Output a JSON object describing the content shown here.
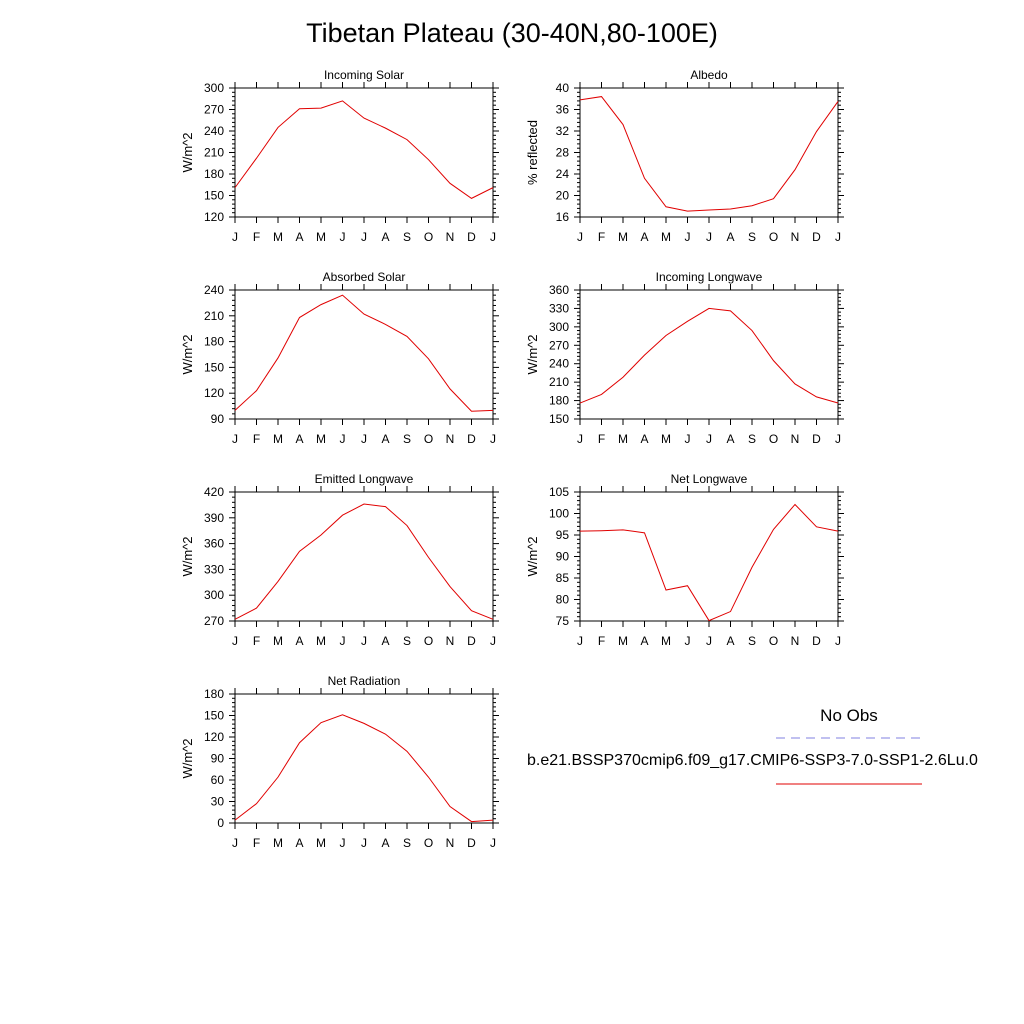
{
  "title": "Tibetan Plateau (30-40N,80-100E)",
  "months": [
    "J",
    "F",
    "M",
    "A",
    "M",
    "J",
    "J",
    "A",
    "S",
    "O",
    "N",
    "D",
    "J"
  ],
  "legend": {
    "obs_label": "No Obs",
    "model_label": "b.e21.BSSP370cmip6.f09_g17.CMIP6-SSP3-7.0-SSP1-2.6Lu.0",
    "obs_color": "#8080e0",
    "model_color": "#e00000"
  },
  "chart_data": [
    {
      "type": "line",
      "title": "Incoming Solar",
      "ylabel": "W/m^2",
      "ylim": [
        120,
        300
      ],
      "yticks": [
        120,
        150,
        180,
        210,
        240,
        270,
        300
      ],
      "ytick_labels": [
        "120",
        "150",
        "180",
        "210",
        "240",
        "270",
        "300"
      ],
      "series": [
        {
          "values": [
            161,
            202,
            245,
            271,
            272,
            282,
            258,
            244,
            228,
            200,
            167,
            146,
            161
          ]
        }
      ]
    },
    {
      "type": "line",
      "title": "Albedo",
      "ylabel": "% reflected",
      "ylim": [
        16,
        40
      ],
      "yticks": [
        16,
        20,
        24,
        28,
        32,
        36,
        40
      ],
      "ytick_labels": [
        "16",
        "20",
        "24",
        "28",
        "32",
        "36",
        "40"
      ],
      "series": [
        {
          "values": [
            37.8,
            38.4,
            33.2,
            23.2,
            17.9,
            17.1,
            17.3,
            17.5,
            18.1,
            19.4,
            24.8,
            31.9,
            37.5
          ]
        }
      ]
    },
    {
      "type": "line",
      "title": "Absorbed Solar",
      "ylabel": "W/m^2",
      "ylim": [
        90,
        240
      ],
      "yticks": [
        90,
        120,
        150,
        180,
        210,
        240
      ],
      "ytick_labels": [
        "90",
        "120",
        "150",
        "180",
        "210",
        "240"
      ],
      "series": [
        {
          "values": [
            100,
            123,
            161,
            208,
            223,
            234,
            212,
            200,
            186,
            160,
            125,
            99,
            100
          ]
        }
      ]
    },
    {
      "type": "line",
      "title": "Incoming Longwave",
      "ylabel": "W/m^2",
      "ylim": [
        150,
        360
      ],
      "yticks": [
        150,
        180,
        210,
        240,
        270,
        300,
        330,
        360
      ],
      "ytick_labels": [
        "150",
        "180",
        "210",
        "240",
        "270",
        "300",
        "330",
        "360"
      ],
      "series": [
        {
          "values": [
            176,
            190,
            218,
            254,
            286,
            309,
            330,
            326,
            294,
            245,
            207,
            186,
            176
          ]
        }
      ]
    },
    {
      "type": "line",
      "title": "Emitted Longwave",
      "ylabel": "W/m^2",
      "ylim": [
        270,
        420
      ],
      "yticks": [
        270,
        300,
        330,
        360,
        390,
        420
      ],
      "ytick_labels": [
        "270",
        "300",
        "330",
        "360",
        "390",
        "420"
      ],
      "series": [
        {
          "values": [
            272,
            285,
            316,
            351,
            370,
            393,
            406,
            403,
            381,
            344,
            310,
            282,
            272
          ]
        }
      ]
    },
    {
      "type": "line",
      "title": "Net Longwave",
      "ylabel": "W/m^2",
      "ylim": [
        75,
        105
      ],
      "yticks": [
        75,
        80,
        85,
        90,
        95,
        100,
        105
      ],
      "ytick_labels": [
        "75",
        "80",
        "85",
        "90",
        "95",
        "100",
        "105"
      ],
      "series": [
        {
          "values": [
            95.9,
            96.0,
            96.2,
            95.5,
            82.2,
            83.2,
            75.1,
            77.2,
            87.5,
            96.3,
            102.1,
            96.9,
            95.9
          ]
        }
      ]
    },
    {
      "type": "line",
      "title": "Net Radiation",
      "ylabel": "W/m^2",
      "ylim": [
        0,
        180
      ],
      "yticks": [
        0,
        30,
        60,
        90,
        120,
        150,
        180
      ],
      "ytick_labels": [
        "0",
        "30",
        "60",
        "90",
        "120",
        "150",
        "180"
      ],
      "series": [
        {
          "values": [
            4,
            27,
            64,
            112,
            140,
            151,
            139,
            124,
            100,
            64,
            23,
            2,
            4
          ]
        }
      ]
    }
  ]
}
